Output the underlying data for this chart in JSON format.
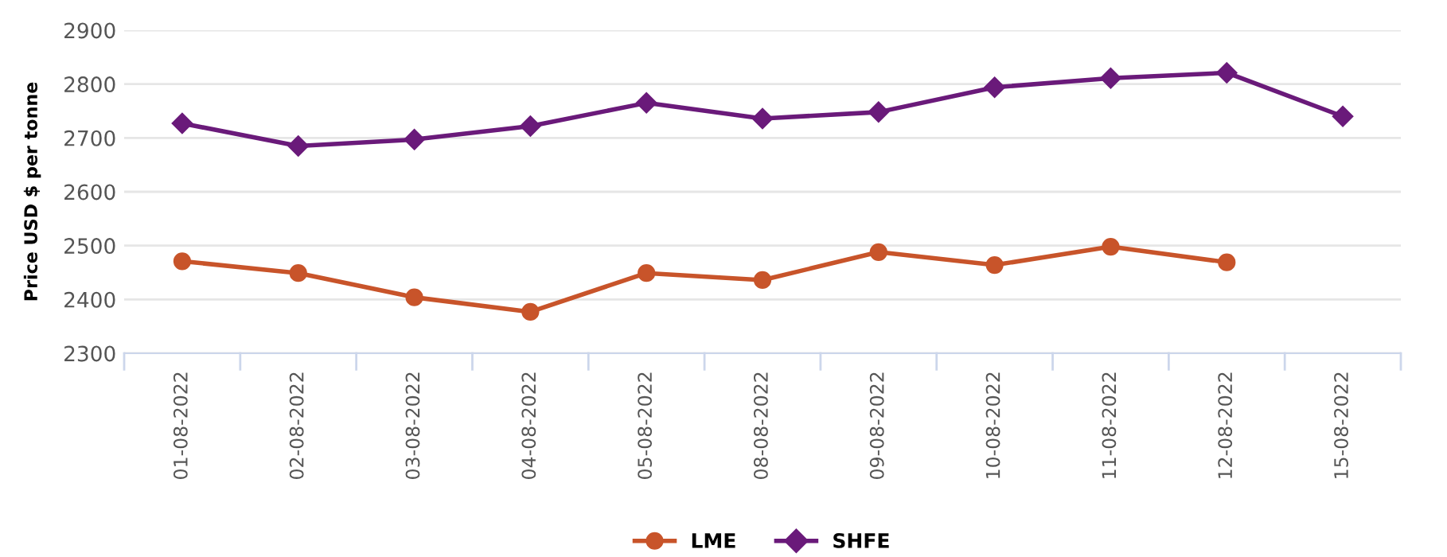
{
  "chart_data": {
    "type": "line",
    "ylabel": "Price USD $ per tonne",
    "categories": [
      "01-08-2022",
      "02-08-2022",
      "03-08-2022",
      "04-08-2022",
      "05-08-2022",
      "08-08-2022",
      "09-08-2022",
      "10-08-2022",
      "11-08-2022",
      "12-08-2022",
      "15-08-2022"
    ],
    "series": [
      {
        "name": "LME",
        "color": "#c8542a",
        "marker": "circle",
        "values": [
          2471,
          2449,
          2404,
          2377,
          2449,
          2436,
          2488,
          2464,
          2498,
          2469,
          null
        ]
      },
      {
        "name": "SHFE",
        "color": "#6a1a7a",
        "marker": "diamond",
        "values": [
          2727,
          2685,
          2697,
          2722,
          2765,
          2736,
          2748,
          2794,
          2811,
          2821,
          2740
        ]
      }
    ],
    "ylim": [
      2300,
      2900
    ],
    "yticks": [
      2300,
      2400,
      2500,
      2600,
      2700,
      2800,
      2900
    ],
    "grid": "y",
    "legend": "bottom",
    "line_style": "solid"
  }
}
